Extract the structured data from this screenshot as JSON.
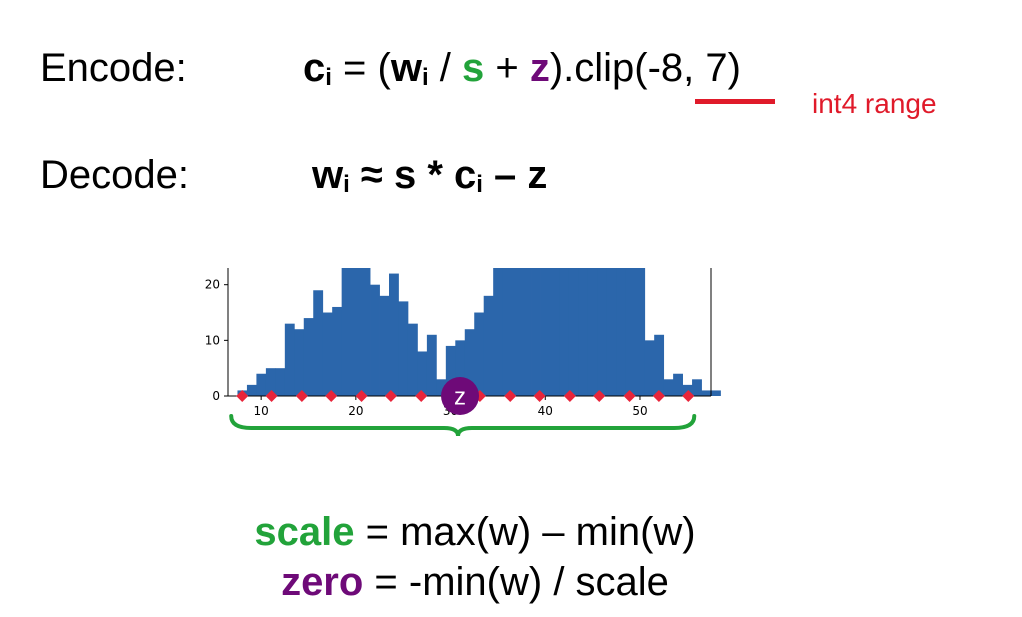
{
  "equations": {
    "encode_label": "Encode:",
    "decode_label": "Decode:",
    "encode": {
      "c": "c",
      "c_sub": "i",
      "eq_open": " = (",
      "w": "w",
      "w_sub": "i",
      "slash": " / ",
      "s": "s",
      "plus": " + ",
      "z": "z",
      "clip": ").clip(-8, 7)"
    },
    "decode": {
      "w": "w",
      "w_sub": "i",
      "mid": " ≈ s * c",
      "c_sub": "i",
      "tail": " – z"
    },
    "range_note": "int4 range"
  },
  "formulas": {
    "scale_word": "scale",
    "scale_rest": " = max(w) – min(w)",
    "zero_word": "zero",
    "zero_rest": " = -min(w) / scale"
  },
  "colors": {
    "scale": "#22a33a",
    "zero": "#6e0a78",
    "range": "#e01a2a",
    "bars": "#2b66ab",
    "markers": "#e8253a"
  },
  "chart_data": {
    "type": "bar",
    "x_start": 8,
    "bin_width": 1,
    "values": [
      1,
      2,
      4,
      5,
      5,
      13,
      12,
      14,
      19,
      15,
      16,
      30,
      30,
      30,
      20,
      18,
      22,
      17,
      13,
      8,
      11,
      3,
      9,
      10,
      12,
      15,
      18,
      30,
      30,
      30,
      30,
      30,
      30,
      30,
      30,
      30,
      30,
      30,
      30,
      30,
      30,
      30,
      23,
      10,
      11,
      3,
      4,
      2,
      3,
      1,
      1
    ],
    "xlim": [
      6.5,
      57.5
    ],
    "ylim": [
      0,
      23
    ],
    "xticks": [
      10,
      20,
      30,
      40,
      50
    ],
    "yticks": [
      0,
      10,
      20
    ],
    "markers_x": [
      8,
      11.1,
      14.3,
      17.4,
      20.6,
      23.7,
      26.9,
      30,
      33.1,
      36.3,
      39.4,
      42.6,
      45.7,
      48.9,
      52,
      55.1
    ],
    "zero_point_label": "z",
    "zero_point_x": 31
  }
}
